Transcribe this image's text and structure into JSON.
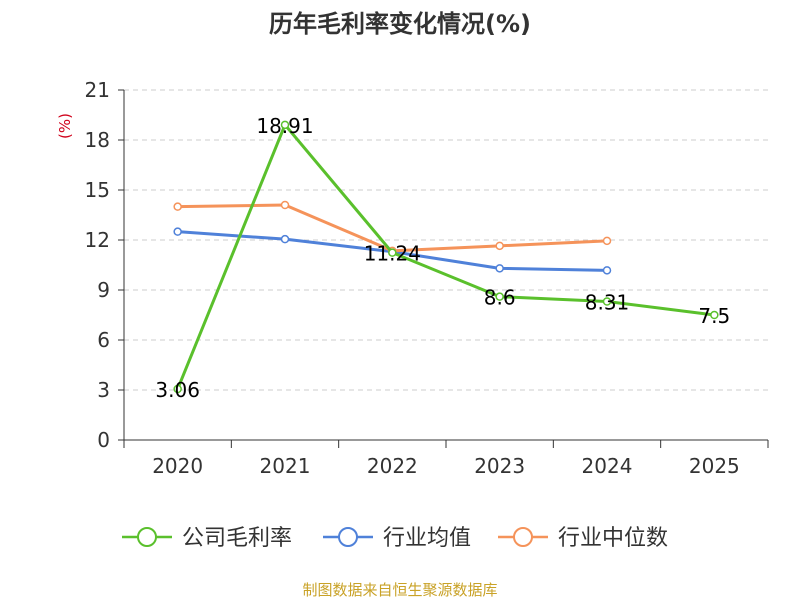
{
  "chart_data": {
    "type": "line",
    "title": "历年毛利率变化情况(%)",
    "unit_label": "(%)",
    "categories": [
      "2020",
      "2021",
      "2022",
      "2023",
      "2024",
      "2025"
    ],
    "ylim": [
      0,
      21
    ],
    "yticks": [
      0,
      3,
      6,
      9,
      12,
      15,
      18,
      21
    ],
    "grid": true,
    "legend_position": "bottom",
    "series": [
      {
        "name": "公司毛利率",
        "color": "#5ac02c",
        "values": [
          3.06,
          18.91,
          11.24,
          8.6,
          8.31,
          7.5
        ],
        "labels": [
          "3.06",
          "18.91",
          "11.24",
          "8.6",
          "8.31",
          "7.5"
        ]
      },
      {
        "name": "行业均值",
        "color": "#4f81d9",
        "values": [
          12.5,
          12.05,
          11.3,
          10.3,
          10.18,
          null
        ]
      },
      {
        "name": "行业中位数",
        "color": "#f5935a",
        "values": [
          14.0,
          14.1,
          11.35,
          11.65,
          11.95,
          null
        ]
      }
    ],
    "source": "制图数据来自恒生聚源数据库"
  }
}
